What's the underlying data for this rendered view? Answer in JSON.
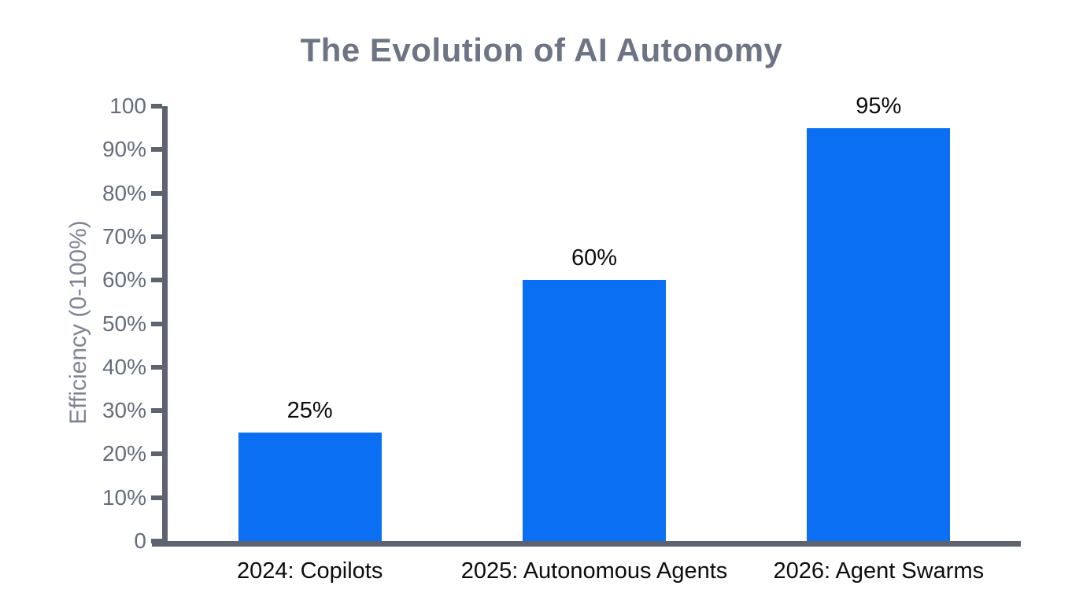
{
  "chart_data": {
    "type": "bar",
    "title": "The Evolution of AI Autonomy",
    "xlabel": "",
    "ylabel": "Efficiency (0-100%)",
    "categories": [
      "2024: Copilots",
      "2025: Autonomous Agents",
      "2026: Agent Swarms"
    ],
    "values": [
      25,
      60,
      95
    ],
    "value_labels": [
      "25%",
      "60%",
      "95%"
    ],
    "ylim": [
      0,
      100
    ],
    "yticks": [
      {
        "value": 0,
        "label": "0"
      },
      {
        "value": 10,
        "label": "10%"
      },
      {
        "value": 20,
        "label": "20%"
      },
      {
        "value": 30,
        "label": "30%"
      },
      {
        "value": 40,
        "label": "40%"
      },
      {
        "value": 50,
        "label": "50%"
      },
      {
        "value": 60,
        "label": "60%"
      },
      {
        "value": 70,
        "label": "70%"
      },
      {
        "value": 80,
        "label": "80%"
      },
      {
        "value": 90,
        "label": "90%"
      },
      {
        "value": 100,
        "label": "100"
      }
    ],
    "grid": false,
    "legend": false,
    "colors": {
      "bar": "#0b6ff3",
      "axis": "#5d6470",
      "tick_label": "#656d7c",
      "title": "#6d7484",
      "y_axis_label": "#7d8494",
      "category_label": "#0d0d0d",
      "value_label": "#0d0d0d",
      "background": "#ffffff"
    }
  }
}
